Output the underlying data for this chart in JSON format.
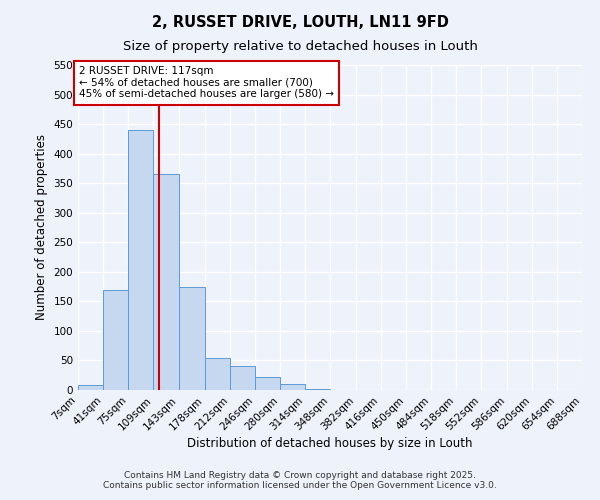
{
  "title": "2, RUSSET DRIVE, LOUTH, LN11 9FD",
  "subtitle": "Size of property relative to detached houses in Louth",
  "bar_values": [
    8,
    170,
    440,
    365,
    175,
    55,
    40,
    22,
    10,
    2,
    0,
    0,
    0,
    0,
    0,
    0,
    0,
    0,
    0,
    0
  ],
  "bin_edges": [
    7,
    41,
    75,
    109,
    143,
    178,
    212,
    246,
    280,
    314,
    348,
    382,
    416,
    450,
    484,
    518,
    552,
    586,
    620,
    654,
    688
  ],
  "x_tick_labels": [
    "7sqm",
    "41sqm",
    "75sqm",
    "109sqm",
    "143sqm",
    "178sqm",
    "212sqm",
    "246sqm",
    "280sqm",
    "314sqm",
    "348sqm",
    "382sqm",
    "416sqm",
    "450sqm",
    "484sqm",
    "518sqm",
    "552sqm",
    "586sqm",
    "620sqm",
    "654sqm",
    "688sqm"
  ],
  "ylabel": "Number of detached properties",
  "xlabel": "Distribution of detached houses by size in Louth",
  "ylim": [
    0,
    550
  ],
  "yticks": [
    0,
    50,
    100,
    150,
    200,
    250,
    300,
    350,
    400,
    450,
    500,
    550
  ],
  "bar_color": "#c5d8f0",
  "bar_edge_color": "#5b9bd5",
  "vline_x": 117,
  "vline_color": "#cc0000",
  "annotation_line1": "2 RUSSET DRIVE: 117sqm",
  "annotation_line2": "← 54% of detached houses are smaller (700)",
  "annotation_line3": "45% of semi-detached houses are larger (580) →",
  "annotation_box_facecolor": "white",
  "annotation_box_edgecolor": "#cc0000",
  "footer_line1": "Contains HM Land Registry data © Crown copyright and database right 2025.",
  "footer_line2": "Contains public sector information licensed under the Open Government Licence v3.0.",
  "background_color": "#eef2fb",
  "grid_color": "#ffffff",
  "title_fontsize": 10.5,
  "subtitle_fontsize": 9.5,
  "axis_label_fontsize": 8.5,
  "tick_fontsize": 7.5,
  "annotation_fontsize": 7.5,
  "footer_fontsize": 6.5
}
